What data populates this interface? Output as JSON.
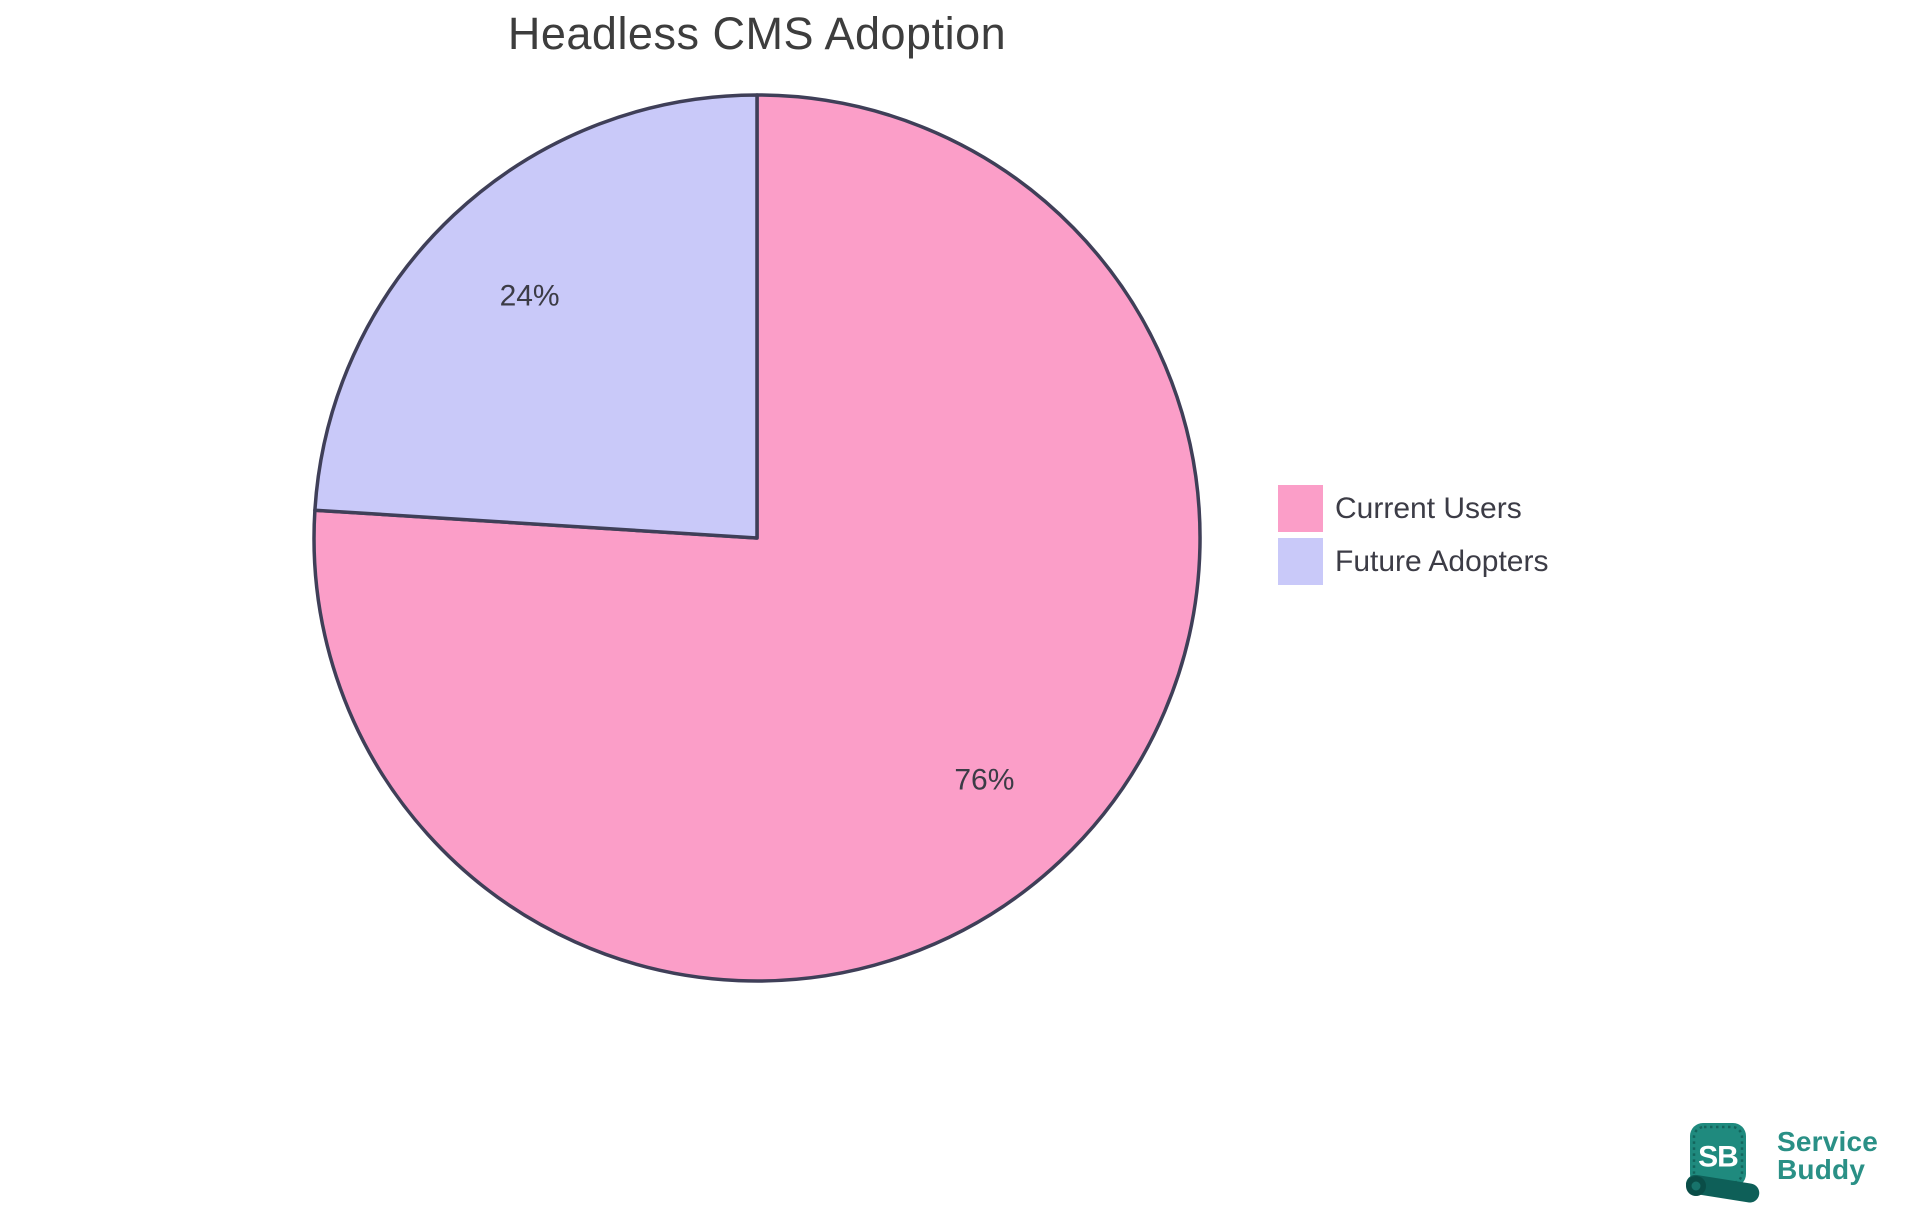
{
  "title": "Headless CMS Adoption",
  "chart_data": {
    "type": "pie",
    "title": "Headless CMS Adoption",
    "labels": [
      "Current Users",
      "Future Adopters"
    ],
    "values": [
      76,
      24
    ],
    "value_labels": [
      "76%",
      "24%"
    ],
    "unit": "percent",
    "colors": [
      "#FB9EC8",
      "#C9C9F9"
    ],
    "slice_stroke_color": "#3F3F58",
    "label_text_color": "#3C3C46",
    "start_angle_deg": 0,
    "direction": "clockwise",
    "legend_position": "right",
    "background_color": "#FFFFFF"
  },
  "legend": {
    "items": [
      {
        "label": "Current Users",
        "color": "#FB9EC8"
      },
      {
        "label": "Future Adopters",
        "color": "#C9C9F9"
      }
    ]
  },
  "branding": {
    "badge_text": "SB",
    "name_line1": "Service",
    "name_line2": "Buddy",
    "badge_color": "#1F8A7E",
    "badge_dark_color": "#0E5F58",
    "text_color": "#2A9086"
  }
}
